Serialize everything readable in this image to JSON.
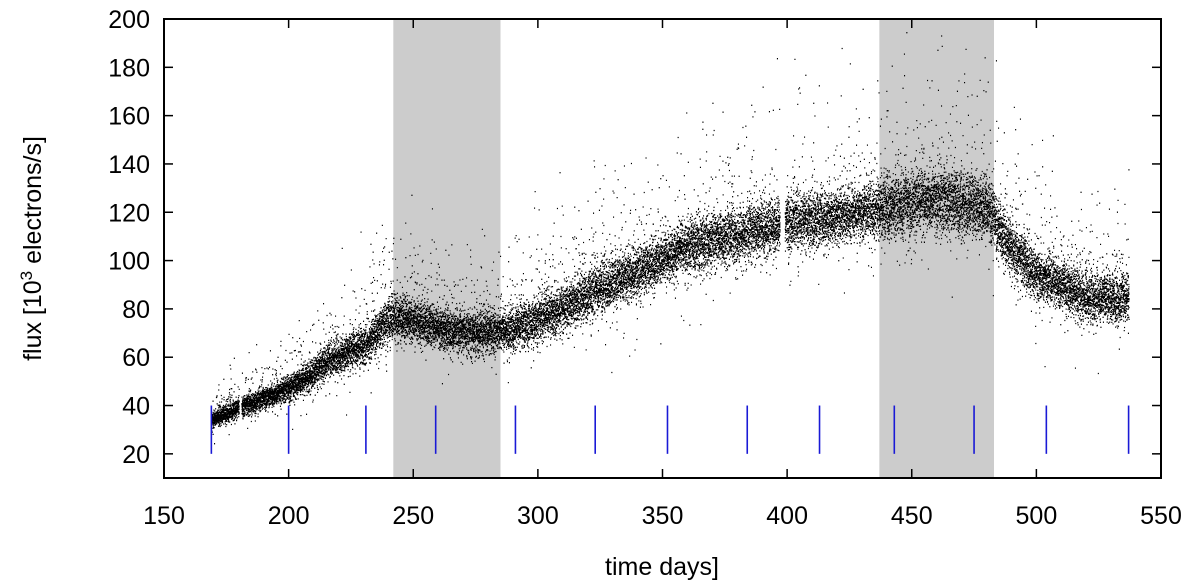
{
  "chart_data": {
    "type": "scatter",
    "xlabel": "time days]",
    "ylabel_main": "flux [10",
    "ylabel_sup": "3",
    "ylabel_rest": " electrons/s]",
    "xlim": [
      150,
      550
    ],
    "ylim": [
      10,
      200
    ],
    "x_ticks": [
      150,
      200,
      250,
      300,
      350,
      400,
      450,
      500,
      550
    ],
    "y_ticks": [
      20,
      40,
      60,
      80,
      100,
      120,
      140,
      160,
      180,
      200
    ],
    "shaded_regions": [
      [
        242,
        285
      ],
      [
        437,
        483
      ]
    ],
    "shaded_color": "#cccccc",
    "point_color": "#000000",
    "marker_color": "#1a1ad6",
    "marker_range": [
      20,
      40
    ],
    "markers_x": [
      169,
      200,
      231,
      259,
      291,
      323,
      352,
      384,
      413,
      443,
      475,
      504,
      537
    ],
    "flux_series": {
      "x": [
        169,
        180,
        190,
        200,
        210,
        215,
        220,
        225,
        230,
        235,
        240,
        245,
        250,
        260,
        270,
        280,
        290,
        300,
        310,
        320,
        330,
        340,
        350,
        360,
        370,
        380,
        390,
        400,
        410,
        420,
        430,
        440,
        450,
        460,
        470,
        480,
        490,
        500,
        510,
        520,
        530,
        537
      ],
      "y": [
        34,
        39,
        43,
        47,
        53,
        58,
        60,
        63,
        64,
        70,
        76,
        76,
        75,
        72,
        70,
        70,
        71,
        76,
        80,
        86,
        91,
        95,
        100,
        106,
        108,
        110,
        113,
        115,
        117,
        118,
        120,
        121,
        124,
        125,
        124,
        121,
        105,
        94,
        90,
        85,
        84,
        84
      ],
      "spread": [
        4,
        5,
        5,
        6,
        7,
        8,
        8,
        9,
        9,
        10,
        11,
        11,
        10,
        10,
        10,
        10,
        10,
        11,
        11,
        12,
        12,
        12,
        12,
        13,
        13,
        13,
        13,
        13,
        13,
        13,
        14,
        15,
        15,
        16,
        16,
        15,
        13,
        12,
        12,
        12,
        12,
        12
      ],
      "gap_days": [
        [
          180,
          181
        ],
        [
          397,
          399
        ]
      ]
    }
  }
}
